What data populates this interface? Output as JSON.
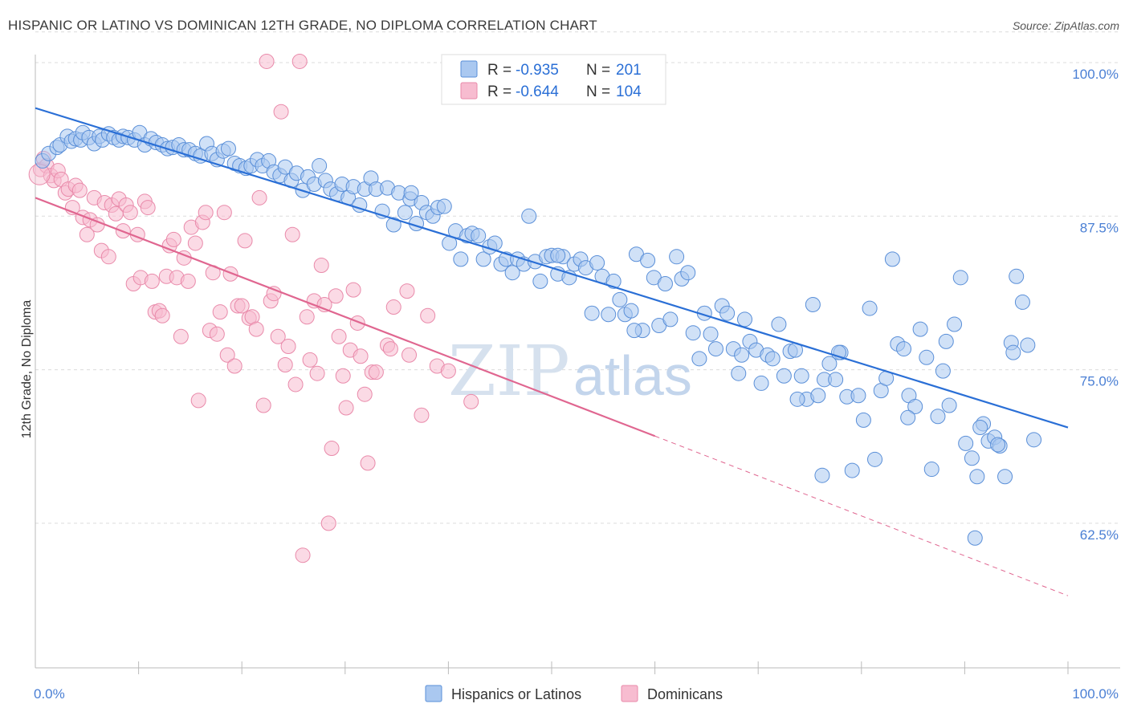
{
  "title": "HISPANIC OR LATINO VS DOMINICAN 12TH GRADE, NO DIPLOMA CORRELATION CHART",
  "source": "Source: ZipAtlas.com",
  "watermark": {
    "zip": "ZIP",
    "atlas": "atlas"
  },
  "colors": {
    "blue_fill": "#aac8f0",
    "blue_stroke": "#5a8fd8",
    "blue_line": "#2a6fd6",
    "pink_fill": "#f7bcd0",
    "pink_stroke": "#e98aaa",
    "pink_line": "#e06690",
    "tick_text": "#4a7fd4",
    "grid": "#dcdcdc"
  },
  "legend": {
    "r_label": "R =",
    "n_label": "N =",
    "series1": {
      "r": "-0.935",
      "n": "201"
    },
    "series2": {
      "r": "-0.644",
      "n": "104"
    }
  },
  "chart_data": {
    "type": "scatter",
    "xlabel": "",
    "ylabel": "12th Grade, No Diploma",
    "xlim": [
      0,
      100
    ],
    "ylim": [
      50,
      103
    ],
    "x_tick_labels": [
      "0.0%",
      "100.0%"
    ],
    "y_ticks": [
      100,
      87.5,
      75,
      62.5
    ],
    "y_tick_labels": [
      "100.0%",
      "87.5%",
      "75.0%",
      "62.5%"
    ],
    "grid": "horizontal dashed",
    "legend_position": "top-center",
    "series": [
      {
        "name": "Hispanics or Latinos",
        "color": "#aac8f0",
        "trend": {
          "x": [
            0,
            100
          ],
          "y": [
            96.3,
            70.3
          ],
          "dashed_extension": false
        },
        "points": [
          [
            0.7,
            92.0
          ],
          [
            1.3,
            92.6
          ],
          [
            2.1,
            93.1
          ],
          [
            2.4,
            93.3
          ],
          [
            3.1,
            94.0
          ],
          [
            3.5,
            93.6
          ],
          [
            3.9,
            93.8
          ],
          [
            4.4,
            93.7
          ],
          [
            4.6,
            94.3
          ],
          [
            5.2,
            93.9
          ],
          [
            5.7,
            93.4
          ],
          [
            6.2,
            94.0
          ],
          [
            6.5,
            93.7
          ],
          [
            7.1,
            94.2
          ],
          [
            7.6,
            93.9
          ],
          [
            8.1,
            93.7
          ],
          [
            8.5,
            94.0
          ],
          [
            9.0,
            93.9
          ],
          [
            9.6,
            93.7
          ],
          [
            10.1,
            94.3
          ],
          [
            10.6,
            93.3
          ],
          [
            11.2,
            93.8
          ],
          [
            11.7,
            93.5
          ],
          [
            12.3,
            93.3
          ],
          [
            12.8,
            93.0
          ],
          [
            13.3,
            93.1
          ],
          [
            13.9,
            93.3
          ],
          [
            14.4,
            92.9
          ],
          [
            14.9,
            92.9
          ],
          [
            15.5,
            92.6
          ],
          [
            16.0,
            92.4
          ],
          [
            16.6,
            93.4
          ],
          [
            17.1,
            92.6
          ],
          [
            17.6,
            92.1
          ],
          [
            18.2,
            92.8
          ],
          [
            18.7,
            93.0
          ],
          [
            19.3,
            91.8
          ],
          [
            19.8,
            91.6
          ],
          [
            20.4,
            91.4
          ],
          [
            20.9,
            91.6
          ],
          [
            21.5,
            92.1
          ],
          [
            22.0,
            91.6
          ],
          [
            22.6,
            92.0
          ],
          [
            23.1,
            91.1
          ],
          [
            23.7,
            90.8
          ],
          [
            24.2,
            91.5
          ],
          [
            24.8,
            90.4
          ],
          [
            25.3,
            91.0
          ],
          [
            25.9,
            89.6
          ],
          [
            26.4,
            90.7
          ],
          [
            27.0,
            90.1
          ],
          [
            27.5,
            91.6
          ],
          [
            28.1,
            90.4
          ],
          [
            28.6,
            89.7
          ],
          [
            29.2,
            89.3
          ],
          [
            29.7,
            90.1
          ],
          [
            30.3,
            89.0
          ],
          [
            30.8,
            89.9
          ],
          [
            31.4,
            88.4
          ],
          [
            31.9,
            89.7
          ],
          [
            32.5,
            90.6
          ],
          [
            33.0,
            89.7
          ],
          [
            33.6,
            87.9
          ],
          [
            34.1,
            89.8
          ],
          [
            34.7,
            86.8
          ],
          [
            35.2,
            89.4
          ],
          [
            35.8,
            87.8
          ],
          [
            36.3,
            88.9
          ],
          [
            36.9,
            86.9
          ],
          [
            37.4,
            88.6
          ],
          [
            37.9,
            87.8
          ],
          [
            38.5,
            87.5
          ],
          [
            39.0,
            88.2
          ],
          [
            39.6,
            88.3
          ],
          [
            40.1,
            85.3
          ],
          [
            40.7,
            86.3
          ],
          [
            41.2,
            84.0
          ],
          [
            41.8,
            85.9
          ],
          [
            42.3,
            86.1
          ],
          [
            42.9,
            85.9
          ],
          [
            43.4,
            84.0
          ],
          [
            44.0,
            85.0
          ],
          [
            44.5,
            85.3
          ],
          [
            45.1,
            83.6
          ],
          [
            45.6,
            84.0
          ],
          [
            46.2,
            82.9
          ],
          [
            46.7,
            84.0
          ],
          [
            47.3,
            83.6
          ],
          [
            47.8,
            87.5
          ],
          [
            48.4,
            83.8
          ],
          [
            48.9,
            82.2
          ],
          [
            49.5,
            84.2
          ],
          [
            50.0,
            84.3
          ],
          [
            50.6,
            82.8
          ],
          [
            51.1,
            84.2
          ],
          [
            51.7,
            82.5
          ],
          [
            52.2,
            83.6
          ],
          [
            52.8,
            84.0
          ],
          [
            53.3,
            83.3
          ],
          [
            53.9,
            79.6
          ],
          [
            54.4,
            83.7
          ],
          [
            54.9,
            82.6
          ],
          [
            55.5,
            79.5
          ],
          [
            56.0,
            82.2
          ],
          [
            56.6,
            80.7
          ],
          [
            57.1,
            79.5
          ],
          [
            57.7,
            79.8
          ],
          [
            58.2,
            84.4
          ],
          [
            58.8,
            78.2
          ],
          [
            59.3,
            83.9
          ],
          [
            59.9,
            82.5
          ],
          [
            60.4,
            78.6
          ],
          [
            61.0,
            82.0
          ],
          [
            61.5,
            79.1
          ],
          [
            62.1,
            84.2
          ],
          [
            62.6,
            82.4
          ],
          [
            63.2,
            82.9
          ],
          [
            63.7,
            78.0
          ],
          [
            64.3,
            75.9
          ],
          [
            64.8,
            79.6
          ],
          [
            65.4,
            77.9
          ],
          [
            65.9,
            76.7
          ],
          [
            66.5,
            80.2
          ],
          [
            67.0,
            79.6
          ],
          [
            67.6,
            76.7
          ],
          [
            68.1,
            74.7
          ],
          [
            68.7,
            79.1
          ],
          [
            69.2,
            77.3
          ],
          [
            69.8,
            76.6
          ],
          [
            70.3,
            73.9
          ],
          [
            70.9,
            76.2
          ],
          [
            71.4,
            75.9
          ],
          [
            72.0,
            78.7
          ],
          [
            72.5,
            74.5
          ],
          [
            73.1,
            76.5
          ],
          [
            73.6,
            76.6
          ],
          [
            74.2,
            74.5
          ],
          [
            74.7,
            72.6
          ],
          [
            75.3,
            80.3
          ],
          [
            75.8,
            72.9
          ],
          [
            76.4,
            74.2
          ],
          [
            76.9,
            75.5
          ],
          [
            77.5,
            74.2
          ],
          [
            78.0,
            76.4
          ],
          [
            78.6,
            72.8
          ],
          [
            79.1,
            66.8
          ],
          [
            79.7,
            72.9
          ],
          [
            80.2,
            70.9
          ],
          [
            80.8,
            80.0
          ],
          [
            81.3,
            67.7
          ],
          [
            81.9,
            73.3
          ],
          [
            82.4,
            74.3
          ],
          [
            83.0,
            84.0
          ],
          [
            83.5,
            77.1
          ],
          [
            84.1,
            76.7
          ],
          [
            84.6,
            72.9
          ],
          [
            85.2,
            72.0
          ],
          [
            85.7,
            78.3
          ],
          [
            86.3,
            76.0
          ],
          [
            86.8,
            66.9
          ],
          [
            87.4,
            71.2
          ],
          [
            87.9,
            74.9
          ],
          [
            88.5,
            72.1
          ],
          [
            89.0,
            78.7
          ],
          [
            89.6,
            82.5
          ],
          [
            90.1,
            69.0
          ],
          [
            90.7,
            67.8
          ],
          [
            91.2,
            66.3
          ],
          [
            91.8,
            70.6
          ],
          [
            92.3,
            69.2
          ],
          [
            92.9,
            69.5
          ],
          [
            93.4,
            68.8
          ],
          [
            93.9,
            66.3
          ],
          [
            94.5,
            77.2
          ],
          [
            95.0,
            82.6
          ],
          [
            95.6,
            80.5
          ],
          [
            96.1,
            77.0
          ],
          [
            96.7,
            69.3
          ],
          [
            91.0,
            61.3
          ],
          [
            94.7,
            76.4
          ],
          [
            84.5,
            71.1
          ],
          [
            76.2,
            66.4
          ],
          [
            91.5,
            70.3
          ],
          [
            93.2,
            68.9
          ],
          [
            77.8,
            76.4
          ],
          [
            58.0,
            78.2
          ],
          [
            68.4,
            76.2
          ],
          [
            73.8,
            72.6
          ],
          [
            88.2,
            77.3
          ],
          [
            50.6,
            84.3
          ],
          [
            36.4,
            89.4
          ]
        ]
      },
      {
        "name": "Dominicans",
        "color": "#f7bcd0",
        "trend": {
          "x": [
            0,
            60
          ],
          "y": [
            89.0,
            69.6
          ],
          "dashed_extension": true,
          "dashed_x": [
            60,
            100
          ],
          "dashed_y": [
            69.6,
            56.6
          ]
        },
        "points": [
          [
            0.5,
            91.3
          ],
          [
            0.8,
            92.2
          ],
          [
            1.1,
            91.6
          ],
          [
            1.5,
            90.8
          ],
          [
            1.8,
            90.4
          ],
          [
            2.2,
            91.2
          ],
          [
            2.5,
            90.5
          ],
          [
            2.9,
            89.4
          ],
          [
            3.2,
            89.7
          ],
          [
            3.6,
            88.2
          ],
          [
            3.9,
            90.0
          ],
          [
            4.3,
            89.6
          ],
          [
            4.6,
            87.4
          ],
          [
            5.0,
            86.0
          ],
          [
            5.3,
            87.2
          ],
          [
            5.7,
            89.0
          ],
          [
            6.0,
            86.8
          ],
          [
            6.4,
            84.7
          ],
          [
            6.7,
            88.6
          ],
          [
            7.1,
            84.2
          ],
          [
            7.4,
            88.4
          ],
          [
            7.8,
            87.7
          ],
          [
            8.1,
            88.9
          ],
          [
            8.5,
            86.3
          ],
          [
            8.8,
            88.4
          ],
          [
            9.2,
            87.8
          ],
          [
            9.5,
            82.0
          ],
          [
            9.9,
            86.0
          ],
          [
            10.2,
            82.5
          ],
          [
            10.6,
            88.7
          ],
          [
            10.9,
            88.2
          ],
          [
            11.3,
            82.2
          ],
          [
            11.6,
            79.7
          ],
          [
            12.0,
            79.8
          ],
          [
            12.3,
            79.4
          ],
          [
            12.7,
            82.6
          ],
          [
            13.0,
            85.1
          ],
          [
            13.4,
            85.6
          ],
          [
            13.7,
            82.5
          ],
          [
            14.1,
            77.7
          ],
          [
            14.4,
            84.1
          ],
          [
            14.8,
            82.2
          ],
          [
            15.1,
            86.6
          ],
          [
            15.5,
            85.3
          ],
          [
            15.8,
            72.5
          ],
          [
            16.2,
            87.0
          ],
          [
            16.5,
            87.8
          ],
          [
            16.9,
            78.2
          ],
          [
            17.2,
            82.9
          ],
          [
            17.6,
            77.9
          ],
          [
            17.9,
            79.7
          ],
          [
            18.3,
            87.8
          ],
          [
            18.6,
            76.2
          ],
          [
            18.9,
            82.8
          ],
          [
            19.3,
            75.3
          ],
          [
            19.6,
            80.2
          ],
          [
            20.0,
            80.2
          ],
          [
            20.3,
            85.5
          ],
          [
            20.7,
            79.2
          ],
          [
            21.0,
            79.3
          ],
          [
            21.4,
            78.3
          ],
          [
            21.7,
            89.0
          ],
          [
            22.1,
            72.1
          ],
          [
            22.4,
            100.1
          ],
          [
            22.8,
            80.6
          ],
          [
            23.1,
            81.2
          ],
          [
            23.5,
            77.7
          ],
          [
            23.8,
            96.0
          ],
          [
            24.2,
            75.4
          ],
          [
            24.5,
            76.9
          ],
          [
            24.9,
            86.0
          ],
          [
            25.2,
            73.8
          ],
          [
            25.6,
            100.1
          ],
          [
            25.9,
            59.9
          ],
          [
            26.3,
            79.3
          ],
          [
            26.6,
            75.8
          ],
          [
            27.0,
            80.6
          ],
          [
            27.3,
            74.7
          ],
          [
            27.7,
            83.5
          ],
          [
            28.0,
            80.3
          ],
          [
            28.4,
            62.5
          ],
          [
            28.7,
            68.6
          ],
          [
            29.1,
            81.0
          ],
          [
            29.4,
            77.7
          ],
          [
            29.8,
            74.5
          ],
          [
            30.1,
            71.9
          ],
          [
            30.5,
            76.6
          ],
          [
            30.8,
            81.5
          ],
          [
            31.2,
            78.8
          ],
          [
            31.5,
            76.1
          ],
          [
            31.9,
            73.0
          ],
          [
            32.2,
            67.4
          ],
          [
            32.6,
            74.8
          ],
          [
            33.0,
            74.8
          ],
          [
            34.1,
            77.0
          ],
          [
            34.4,
            76.7
          ],
          [
            34.7,
            80.1
          ],
          [
            36.0,
            81.4
          ],
          [
            36.2,
            76.2
          ],
          [
            37.4,
            71.3
          ],
          [
            38.0,
            79.4
          ],
          [
            38.9,
            75.3
          ],
          [
            40.0,
            74.9
          ],
          [
            42.2,
            72.4
          ]
        ]
      }
    ]
  },
  "bottom_legend": [
    "Hispanics or Latinos",
    "Dominicans"
  ]
}
